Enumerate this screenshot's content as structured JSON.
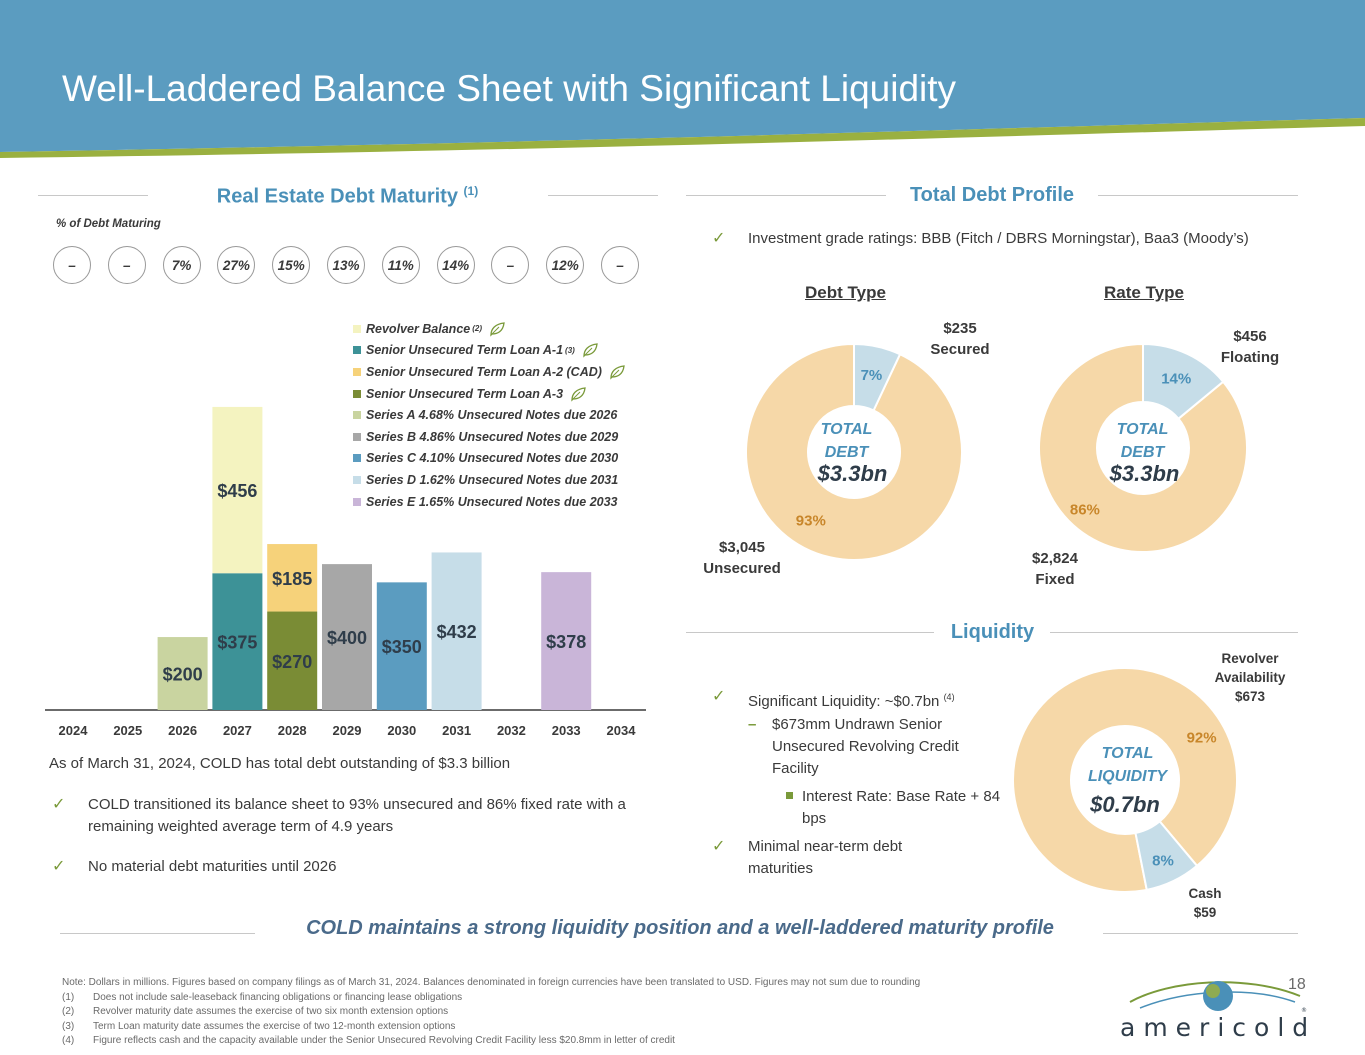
{
  "header": {
    "title": "Well-Laddered Balance Sheet with Significant Liquidity"
  },
  "colors": {
    "header_blue": "#5b9cc0",
    "green_stripe": "#9ab040",
    "accent_blue": "#4a90b8",
    "revolver": "#f4f3c0",
    "tla1": "#3d9297",
    "tla2": "#f6d27a",
    "tla3": "#7a8c35",
    "seriesA": "#c9d4a0",
    "seriesB": "#a7a7a7",
    "seriesC": "#5b9cc0",
    "seriesD": "#c6dde8",
    "seriesE": "#c9b5d8",
    "donut_main": "#f6d8a8",
    "donut_minor": "#c6dde8"
  },
  "maturity": {
    "title": "Real Estate Debt Maturity",
    "title_sup": "(1)",
    "pct_label": "% of Debt Maturing",
    "pct_values": [
      "–",
      "–",
      "7%",
      "27%",
      "15%",
      "13%",
      "11%",
      "14%",
      "–",
      "12%",
      "–"
    ]
  },
  "chart_data": {
    "type": "bar",
    "stacked": true,
    "title": "Real Estate Debt Maturity",
    "categories": [
      "2024",
      "2025",
      "2026",
      "2027",
      "2028",
      "2029",
      "2030",
      "2031",
      "2032",
      "2033",
      "2034"
    ],
    "series": [
      {
        "name": "Revolver Balance",
        "sup": "(2)",
        "leaf": true,
        "color": "#f4f3c0",
        "values": [
          0,
          0,
          0,
          456,
          0,
          0,
          0,
          0,
          0,
          0,
          0
        ]
      },
      {
        "name": "Senior Unsecured Term Loan A-1",
        "sup": "(3)",
        "leaf": true,
        "color": "#3d9297",
        "values": [
          0,
          0,
          0,
          375,
          0,
          0,
          0,
          0,
          0,
          0,
          0
        ]
      },
      {
        "name": "Senior Unsecured Term Loan A-2 (CAD)",
        "sup": "",
        "leaf": true,
        "color": "#f6d27a",
        "values": [
          0,
          0,
          0,
          0,
          185,
          0,
          0,
          0,
          0,
          0,
          0
        ]
      },
      {
        "name": "Senior Unsecured Term Loan A-3",
        "sup": "",
        "leaf": true,
        "color": "#7a8c35",
        "values": [
          0,
          0,
          0,
          0,
          270,
          0,
          0,
          0,
          0,
          0,
          0
        ]
      },
      {
        "name": "Series A 4.68% Unsecured Notes due 2026",
        "sup": "",
        "leaf": false,
        "color": "#c9d4a0",
        "values": [
          0,
          0,
          200,
          0,
          0,
          0,
          0,
          0,
          0,
          0,
          0
        ]
      },
      {
        "name": "Series B 4.86% Unsecured Notes due 2029",
        "sup": "",
        "leaf": false,
        "color": "#a7a7a7",
        "values": [
          0,
          0,
          0,
          0,
          0,
          400,
          0,
          0,
          0,
          0,
          0
        ]
      },
      {
        "name": "Series C 4.10% Unsecured Notes due 2030",
        "sup": "",
        "leaf": false,
        "color": "#5b9cc0",
        "values": [
          0,
          0,
          0,
          0,
          0,
          0,
          350,
          0,
          0,
          0,
          0
        ]
      },
      {
        "name": "Series D 1.62% Unsecured Notes due 2031",
        "sup": "",
        "leaf": false,
        "color": "#c6dde8",
        "values": [
          0,
          0,
          0,
          0,
          0,
          0,
          0,
          432,
          0,
          0,
          0
        ]
      },
      {
        "name": "Series E 1.65% Unsecured Notes due 2033",
        "sup": "",
        "leaf": false,
        "color": "#c9b5d8",
        "values": [
          0,
          0,
          0,
          0,
          0,
          0,
          0,
          0,
          0,
          378,
          0
        ]
      }
    ],
    "stack_order": [
      "Series A 4.68% Unsecured Notes due 2026",
      "Senior Unsecured Term Loan A-1",
      "Revolver Balance",
      "Senior Unsecured Term Loan A-3",
      "Senior Unsecured Term Loan A-2 (CAD)",
      "Series B 4.86% Unsecured Notes due 2029",
      "Series C 4.10% Unsecured Notes due 2030",
      "Series D 1.62% Unsecured Notes due 2031",
      "Series E 1.65% Unsecured Notes due 2033"
    ],
    "data_labels": {
      "Revolver Balance": "$456",
      "Senior Unsecured Term Loan A-1": "$375",
      "Senior Unsecured Term Loan A-2 (CAD)": "$185",
      "Senior Unsecured Term Loan A-3": "$270",
      "Series A 4.68% Unsecured Notes due 2026": "$200",
      "Series B 4.86% Unsecured Notes due 2029": "$400",
      "Series C 4.10% Unsecured Notes due 2030": "$350",
      "Series D 1.62% Unsecured Notes due 2031": "$432",
      "Series E 1.65% Unsecured Notes due 2033": "$378"
    },
    "ylim": [
      0,
      900
    ],
    "xlabel": "",
    "ylabel": "",
    "legend": "top-right"
  },
  "maturity_text": {
    "summary": "As of March 31, 2024, COLD has total debt outstanding of $3.3 billion",
    "bullets": [
      "COLD transitioned its balance sheet to 93% unsecured and 86% fixed rate with a remaining weighted average term of 4.9 years",
      "No material debt maturities until 2026"
    ]
  },
  "profile": {
    "title": "Total Debt Profile",
    "ratings": "Investment grade ratings: BBB (Fitch / DBRS Morningstar), Baa3 (Moody’s)",
    "debt_type": {
      "title": "Debt Type",
      "center_label": "TOTAL DEBT",
      "center_value": "$3.3bn",
      "slices": [
        {
          "name": "Unsecured",
          "value": 93,
          "label": "93%"
        },
        {
          "name": "Secured",
          "value": 7,
          "label": "7%"
        }
      ],
      "callout_secured": "$235 Secured",
      "callout_secured_amt": "$235",
      "callout_secured_name": "Secured",
      "callout_unsecured_amt": "$3,045",
      "callout_unsecured_name": "Unsecured"
    },
    "rate_type": {
      "title": "Rate Type",
      "center_label": "TOTAL DEBT",
      "center_value": "$3.3bn",
      "slices": [
        {
          "name": "Fixed",
          "value": 86,
          "label": "86%"
        },
        {
          "name": "Floating",
          "value": 14,
          "label": "14%"
        }
      ],
      "callout_floating_amt": "$456",
      "callout_floating_name": "Floating",
      "callout_fixed_amt": "$2,824",
      "callout_fixed_name": "Fixed"
    }
  },
  "liquidity": {
    "title": "Liquidity",
    "bullet1": "Significant Liquidity: ~$0.7bn",
    "bullet1_sup": "(4)",
    "sub1": "$673mm Undrawn Senior Unsecured Revolving Credit Facility",
    "sub2": "Interest Rate: Base Rate + 84 bps",
    "bullet2": "Minimal near-term debt maturities",
    "donut": {
      "center_label": "TOTAL LIQUIDITY",
      "center_value": "$0.7bn",
      "slices": [
        {
          "name": "Revolver Availability",
          "value": 92,
          "label": "92%"
        },
        {
          "name": "Cash",
          "value": 8,
          "label": "8%"
        }
      ],
      "callout_revolver_l1": "Revolver",
      "callout_revolver_l2": "Availability",
      "callout_revolver_amt": "$673",
      "callout_cash_name": "Cash",
      "callout_cash_amt": "$59"
    }
  },
  "footer": {
    "quote": "COLD maintains a strong liquidity position and a well-laddered maturity profile",
    "note": "Note: Dollars in millions. Figures based on company filings as of March 31, 2024. Balances denominated in foreign currencies have been translated to USD. Figures may not sum due to rounding",
    "footnotes": [
      {
        "num": "(1)",
        "text": "Does not include sale-leaseback financing obligations or financing lease obligations"
      },
      {
        "num": "(2)",
        "text": "Revolver maturity date assumes the exercise of two six month extension options"
      },
      {
        "num": "(3)",
        "text": "Term Loan maturity date assumes the exercise of two 12-month extension options"
      },
      {
        "num": "(4)",
        "text": "Figure reflects cash and the capacity available under the Senior Unsecured Revolving Credit Facility less $20.8mm in letter of credit"
      }
    ],
    "page_number": "18",
    "logo_text": "americold"
  }
}
